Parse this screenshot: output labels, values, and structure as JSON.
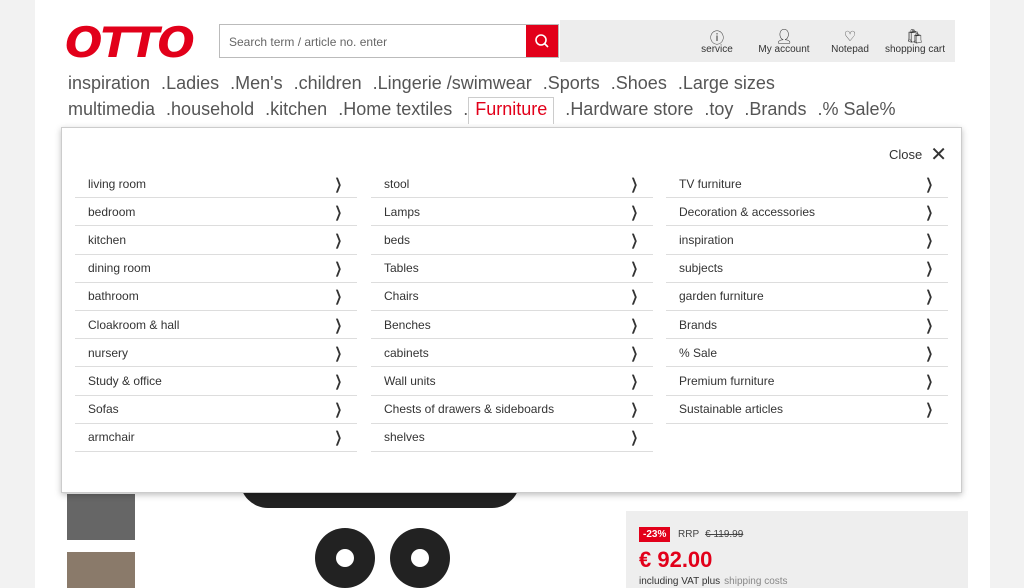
{
  "logo": "OTTO",
  "search": {
    "placeholder": "Search term / article no. enter"
  },
  "header_items": [
    {
      "label": "service",
      "icon": "info-icon"
    },
    {
      "label": "My account",
      "icon": "user-icon"
    },
    {
      "label": "Notepad",
      "icon": "heart-icon"
    },
    {
      "label": "shopping cart",
      "icon": "bag-icon"
    }
  ],
  "nav_row1": [
    "inspiration",
    "Ladies",
    "Men's",
    "children",
    "Lingerie /swimwear",
    "Sports",
    "Shoes",
    "Large sizes"
  ],
  "nav_row2": [
    "multimedia",
    "household",
    "kitchen",
    "Home textiles",
    "Furniture",
    "Hardware store",
    "toy",
    "Brands",
    "% Sale%"
  ],
  "active_nav": "Furniture",
  "menu": {
    "close_label": "Close",
    "col1": [
      "living room",
      "bedroom",
      "kitchen",
      "dining room",
      "bathroom",
      "Cloakroom & hall",
      "nursery",
      "Study & office",
      "Sofas",
      "armchair"
    ],
    "col2": [
      "stool",
      "Lamps",
      "beds",
      "Tables",
      "Chairs",
      "Benches",
      "cabinets",
      "Wall units",
      "Chests of drawers & sideboards",
      "shelves"
    ],
    "col3": [
      "TV furniture",
      "Decoration & accessories",
      "inspiration",
      "subjects",
      "garden furniture",
      "Brands",
      "% Sale",
      "Premium furniture",
      "Sustainable articles"
    ]
  },
  "price": {
    "discount": "-23%",
    "rrp_label": "RRP",
    "rrp": "€ 119.99",
    "amount": "€ 92.00",
    "vat": "including VAT plus",
    "shipping": "shipping costs"
  },
  "colors": {
    "brand": "#e2001a"
  }
}
